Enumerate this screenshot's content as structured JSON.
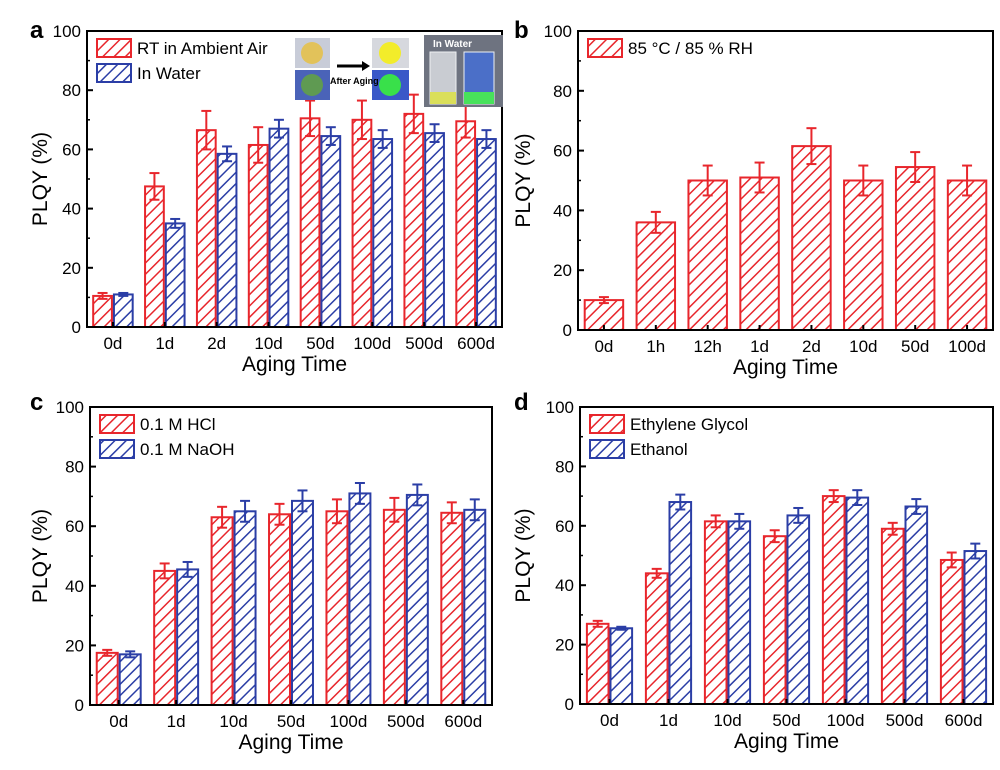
{
  "colors": {
    "series_red": "#e8262c",
    "series_blue": "#2b3ea6"
  },
  "inset": {
    "label_after_aging": "After Aging",
    "label_in_water": "In Water"
  },
  "chart_data": [
    {
      "panel": "a",
      "type": "bar",
      "xlabel": "Aging Time",
      "ylabel": "PLQY (%)",
      "ylim": [
        0,
        100
      ],
      "yticks": [
        0,
        20,
        40,
        60,
        80,
        100
      ],
      "legend_position": "top-left",
      "categories": [
        "0d",
        "1d",
        "2d",
        "10d",
        "50d",
        "100d",
        "500d",
        "600d"
      ],
      "series": [
        {
          "name": "RT in Ambient Air",
          "color": "#e8262c",
          "values": [
            10.5,
            47.5,
            66.5,
            61.5,
            70.5,
            70,
            72,
            69.5
          ],
          "errors": [
            1,
            4.5,
            6.5,
            6,
            6,
            6.5,
            6.5,
            5.5
          ]
        },
        {
          "name": "In Water",
          "color": "#2b3ea6",
          "values": [
            11,
            35,
            58.5,
            67,
            64.5,
            63.5,
            65.5,
            63.5
          ],
          "errors": [
            0.5,
            1.5,
            2.5,
            3,
            3,
            3,
            3,
            3
          ]
        }
      ]
    },
    {
      "panel": "b",
      "type": "bar",
      "xlabel": "Aging Time",
      "ylabel": "PLQY (%)",
      "ylim": [
        0,
        100
      ],
      "yticks": [
        0,
        20,
        40,
        60,
        80,
        100
      ],
      "legend_position": "top-left",
      "categories": [
        "0d",
        "1h",
        "12h",
        "1d",
        "2d",
        "10d",
        "50d",
        "100d"
      ],
      "series": [
        {
          "name": "85 °C / 85 % RH",
          "color": "#e8262c",
          "values": [
            10,
            36,
            50,
            51,
            61.5,
            50,
            54.5,
            50
          ],
          "errors": [
            1,
            3.5,
            5,
            5,
            6,
            5,
            5,
            5
          ]
        }
      ]
    },
    {
      "panel": "c",
      "type": "bar",
      "xlabel": "Aging Time",
      "ylabel": "PLQY (%)",
      "ylim": [
        0,
        100
      ],
      "yticks": [
        0,
        20,
        40,
        60,
        80,
        100
      ],
      "legend_position": "top-left",
      "categories": [
        "0d",
        "1d",
        "10d",
        "50d",
        "100d",
        "500d",
        "600d"
      ],
      "series": [
        {
          "name": "0.1 M HCl",
          "color": "#e8262c",
          "values": [
            17.5,
            45,
            63,
            64,
            65,
            65.5,
            64.5
          ],
          "errors": [
            1,
            2.5,
            3.5,
            3.5,
            4,
            4,
            3.5
          ]
        },
        {
          "name": "0.1 M NaOH",
          "color": "#2b3ea6",
          "values": [
            17,
            45.5,
            65,
            68.5,
            71,
            70.5,
            65.5
          ],
          "errors": [
            1,
            2.5,
            3.5,
            3.5,
            3.5,
            3.5,
            3.5
          ]
        }
      ]
    },
    {
      "panel": "d",
      "type": "bar",
      "xlabel": "Aging Time",
      "ylabel": "PLQY (%)",
      "ylim": [
        0,
        100
      ],
      "yticks": [
        0,
        20,
        40,
        60,
        80,
        100
      ],
      "legend_position": "top-left",
      "categories": [
        "0d",
        "1d",
        "10d",
        "50d",
        "100d",
        "500d",
        "600d"
      ],
      "series": [
        {
          "name": "Ethylene Glycol",
          "color": "#e8262c",
          "values": [
            27,
            44,
            61.5,
            56.5,
            70,
            59,
            48.5
          ],
          "errors": [
            1,
            1.5,
            2,
            2,
            2,
            2,
            2.5
          ]
        },
        {
          "name": "Ethanol",
          "color": "#2b3ea6",
          "values": [
            25.5,
            68,
            61.5,
            63.5,
            69.5,
            66.5,
            51.5
          ],
          "errors": [
            0.5,
            2.5,
            2.5,
            2.5,
            2.5,
            2.5,
            2.5
          ]
        }
      ]
    }
  ]
}
